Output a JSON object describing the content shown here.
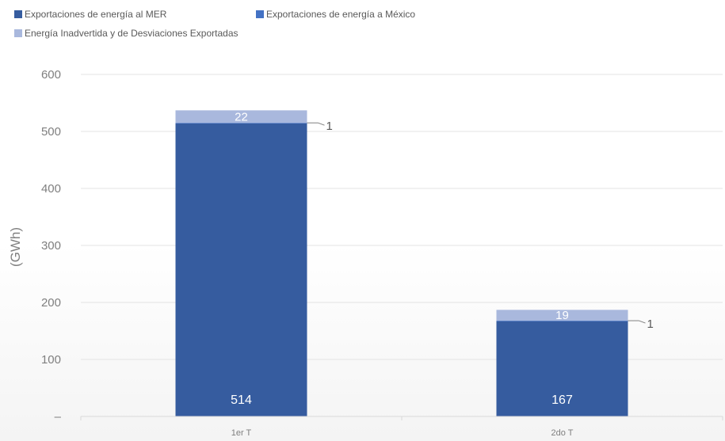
{
  "chart_data": {
    "type": "bar",
    "stacked": true,
    "categories": [
      "1er T",
      "2do T"
    ],
    "series": [
      {
        "name": "Exportaciones de energía al MER",
        "values": [
          514,
          167
        ],
        "color": "#365c9f"
      },
      {
        "name": "Exportaciones de energía a México",
        "values": [
          1,
          1
        ],
        "color": "#4472c4"
      },
      {
        "name": "Energía Inadvertida y de Desviaciones Exportadas",
        "values": [
          22,
          19
        ],
        "color": "#a9b8dd"
      }
    ],
    "title": "",
    "xlabel": "",
    "ylabel": "(GWh)",
    "ylim": [
      0,
      600
    ],
    "yticks": [
      "–",
      "100",
      "200",
      "300",
      "400",
      "500",
      "600"
    ],
    "grid": true,
    "legend_position": "top-left"
  }
}
